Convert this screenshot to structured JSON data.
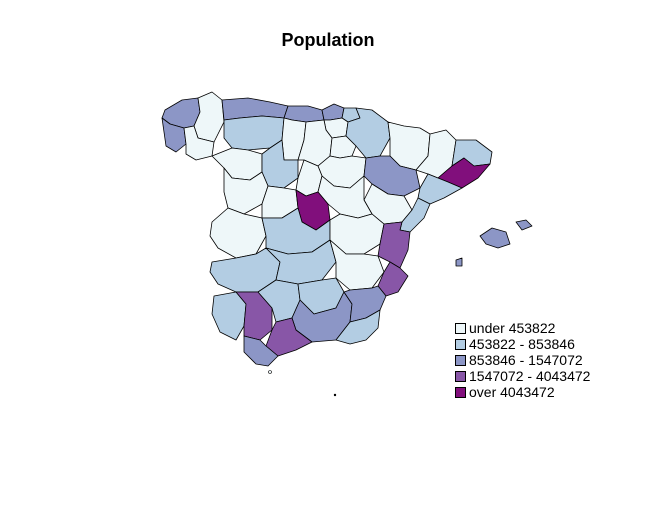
{
  "title": "Population",
  "colors": {
    "c1": "#eef7f9",
    "c2": "#b3cde3",
    "c3": "#8c96c6",
    "c4": "#8856a7",
    "c5": "#810f7c"
  },
  "legend": [
    {
      "label": "under 453822",
      "color_key": "c1"
    },
    {
      "label": "453822 - 853846",
      "color_key": "c2"
    },
    {
      "label": "853846 - 1547072",
      "color_key": "c3"
    },
    {
      "label": "1547072 - 4043472",
      "color_key": "c4"
    },
    {
      "label": "over 4043472",
      "color_key": "c5"
    }
  ]
}
